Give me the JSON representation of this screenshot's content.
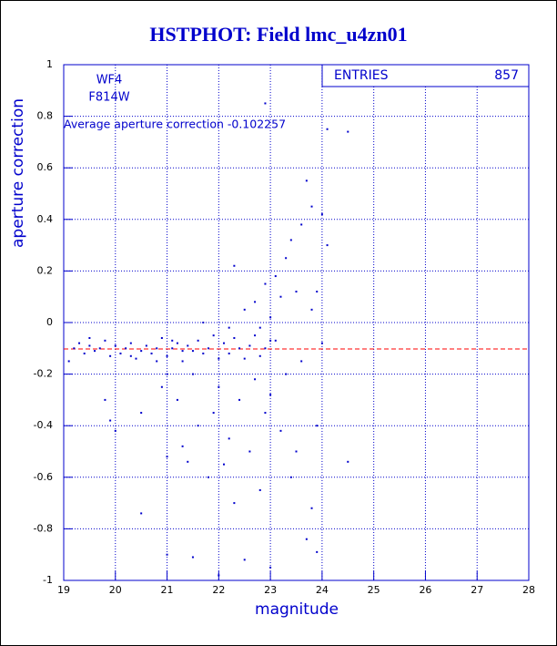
{
  "chart_data": {
    "type": "scatter",
    "title": "HSTPHOT: Field lmc_u4zn01",
    "xlabel": "magnitude",
    "ylabel": "aperture correction",
    "xlim": [
      19,
      28
    ],
    "ylim": [
      -1,
      1
    ],
    "xticks": [
      19,
      20,
      21,
      22,
      23,
      24,
      25,
      26,
      27,
      28
    ],
    "yticks": [
      -1,
      -0.8,
      -0.6,
      -0.4,
      -0.2,
      0,
      0.2,
      0.4,
      0.6,
      0.8,
      1
    ],
    "grid": true,
    "annotations": [
      "WF4",
      "F814W",
      "Average aperture correction -0.102257"
    ],
    "reference_line": {
      "value": -0.102257,
      "color": "#ff0000"
    },
    "stats": {
      "label": "ENTRIES",
      "value": 857
    },
    "series": [
      {
        "color": "#0000cc",
        "x": [
          19.1,
          19.2,
          19.3,
          19.4,
          19.5,
          19.6,
          19.7,
          19.8,
          19.9,
          20.0,
          20.1,
          20.2,
          20.3,
          20.4,
          20.5,
          20.6,
          20.7,
          20.8,
          20.9,
          21.0,
          21.1,
          21.2,
          21.3,
          21.4,
          21.5,
          21.6,
          21.7,
          21.8,
          21.9,
          22.0,
          19.8,
          19.9,
          20.0,
          20.5,
          20.5,
          20.8,
          20.9,
          21.0,
          21.0,
          21.0,
          21.2,
          21.3,
          21.4,
          21.5,
          21.5,
          21.6,
          21.7,
          21.8,
          21.9,
          22.0,
          22.0,
          22.1,
          22.2,
          22.2,
          22.3,
          22.4,
          22.5,
          22.5,
          22.6,
          22.7,
          22.7,
          22.8,
          22.8,
          22.9,
          22.9,
          23.0,
          23.0,
          23.0,
          23.1,
          23.1,
          23.2,
          23.2,
          23.3,
          23.3,
          23.4,
          23.4,
          23.5,
          23.5,
          23.6,
          23.6,
          23.7,
          23.7,
          23.8,
          23.8,
          23.9,
          23.9,
          24.0,
          24.0,
          24.1,
          24.5,
          22.9,
          24.5,
          24.1,
          22.3,
          23.8,
          23.9,
          22.1,
          22.2,
          22.3,
          22.4,
          22.5,
          22.6,
          22.7,
          22.8,
          22.9,
          23.0,
          21.1,
          21.3,
          20.3,
          19.5
        ],
        "y": [
          -0.15,
          -0.1,
          -0.08,
          -0.12,
          -0.09,
          -0.11,
          -0.1,
          -0.07,
          -0.13,
          -0.09,
          -0.12,
          -0.1,
          -0.08,
          -0.14,
          -0.11,
          -0.09,
          -0.12,
          -0.1,
          -0.06,
          -0.13,
          -0.1,
          -0.08,
          -0.15,
          -0.09,
          -0.11,
          -0.07,
          -0.12,
          -0.1,
          -0.05,
          -0.14,
          -0.3,
          -0.38,
          -0.42,
          -0.35,
          -0.74,
          -0.15,
          -0.25,
          -0.2,
          -0.52,
          -0.9,
          -0.3,
          -0.48,
          -0.54,
          -0.2,
          -0.91,
          -0.4,
          0.0,
          -0.6,
          -0.35,
          -0.98,
          -0.25,
          -0.55,
          -0.02,
          -0.45,
          -0.7,
          -0.3,
          0.05,
          -0.92,
          -0.5,
          0.08,
          -0.22,
          -0.65,
          -0.02,
          0.15,
          -0.35,
          0.02,
          -0.28,
          -0.95,
          0.18,
          -0.07,
          -0.42,
          0.1,
          0.25,
          -0.2,
          0.32,
          -0.6,
          0.12,
          -0.5,
          0.38,
          -0.15,
          0.55,
          -0.84,
          0.45,
          0.05,
          0.12,
          -0.4,
          0.42,
          -0.08,
          0.3,
          -0.54,
          0.85,
          0.74,
          0.75,
          0.22,
          -0.72,
          -0.89,
          -0.08,
          -0.12,
          -0.06,
          -0.1,
          -0.14,
          -0.09,
          -0.05,
          -0.13,
          -0.1,
          -0.07,
          -0.07,
          -0.11,
          -0.13,
          -0.06
        ]
      }
    ]
  }
}
